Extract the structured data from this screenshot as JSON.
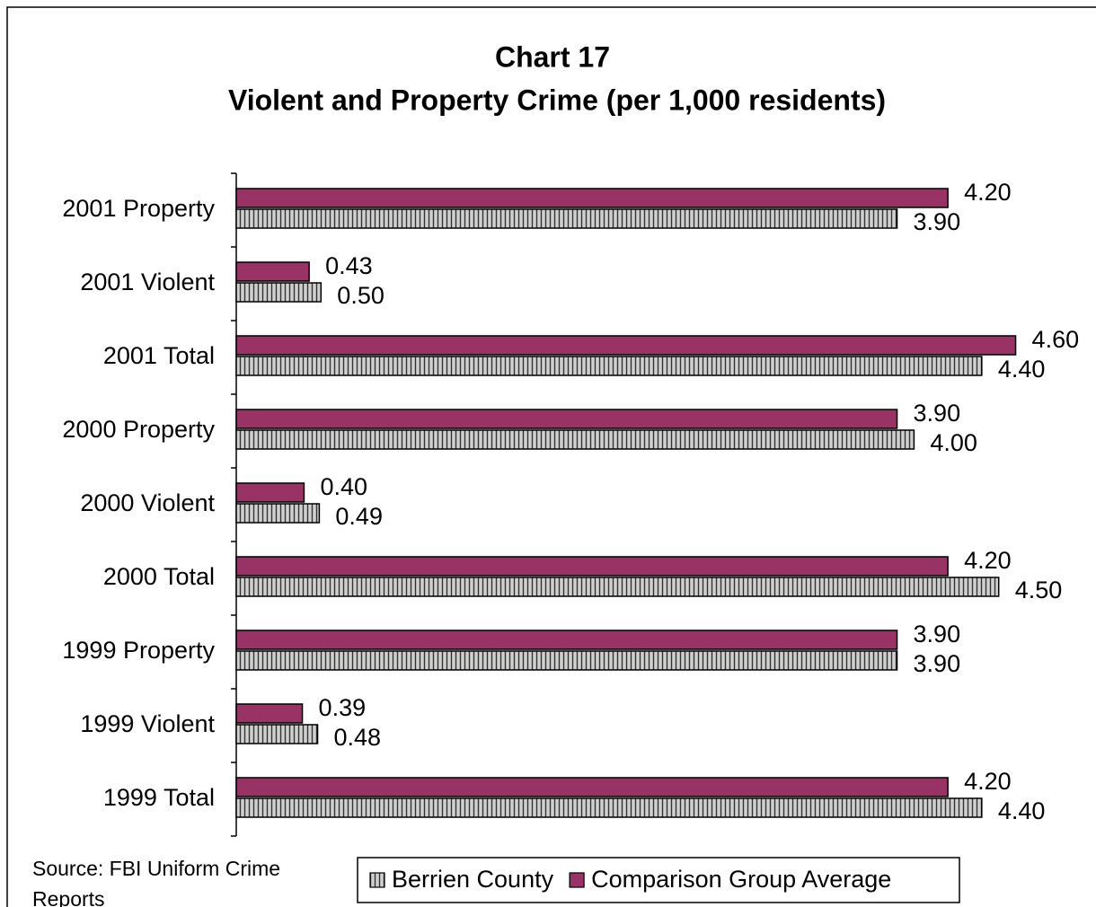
{
  "chart_data": {
    "type": "hbar",
    "title": "Chart 17",
    "subtitle": "Violent and Property Crime (per 1,000 residents)",
    "source": "Source: FBI Uniform Crime Reports",
    "categories": [
      "2001 Property",
      "2001 Violent",
      "2001 Total",
      "2000 Property",
      "2000 Violent",
      "2000 Total",
      "1999 Property",
      "1999 Violent",
      "1999 Total"
    ],
    "series": [
      {
        "name": "Berrien County",
        "color": "#c0c0c0",
        "pattern": "vertical",
        "values": [
          3.9,
          0.5,
          4.4,
          4.0,
          0.49,
          4.5,
          3.9,
          0.48,
          4.4
        ],
        "value_labels": [
          "3.90",
          "0.50",
          "4.40",
          "4.00",
          "0.49",
          "4.50",
          "3.90",
          "0.48",
          "4.40"
        ]
      },
      {
        "name": "Comparison Group Average",
        "color": "#993366",
        "values": [
          4.2,
          0.43,
          4.6,
          3.9,
          0.4,
          4.2,
          3.9,
          0.39,
          4.2
        ],
        "value_labels": [
          "4.20",
          "0.43",
          "4.60",
          "3.90",
          "0.40",
          "4.20",
          "3.90",
          "0.39",
          "4.20"
        ]
      }
    ],
    "xlim": [
      0,
      5
    ],
    "legend": "bottom"
  }
}
